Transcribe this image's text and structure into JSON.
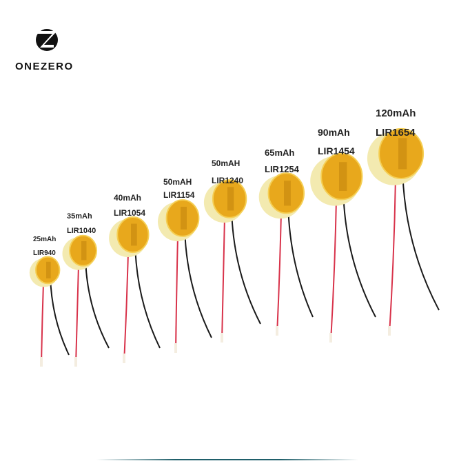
{
  "brand": {
    "name": "ONEZERO",
    "logo": "z-in-circle-logo"
  },
  "batteries": [
    {
      "capacity": "25mAh",
      "model": "LIR940"
    },
    {
      "capacity": "35mAh",
      "model": "LIR1040"
    },
    {
      "capacity": "40mAh",
      "model": "LIR1054"
    },
    {
      "capacity": "50mAH",
      "model": "LIR1154"
    },
    {
      "capacity": "50mAH",
      "model": "LIR1240"
    },
    {
      "capacity": "65mAh",
      "model": "LIR1254"
    },
    {
      "capacity": "90mAh",
      "model": "LIR1454"
    },
    {
      "capacity": "120mAh",
      "model": "LIR1654"
    }
  ],
  "colors": {
    "cell_side": "#f3eab0",
    "cell_face": "#e8a81c",
    "red_wire": "#d8324a",
    "black_wire": "#1a1a1a"
  }
}
